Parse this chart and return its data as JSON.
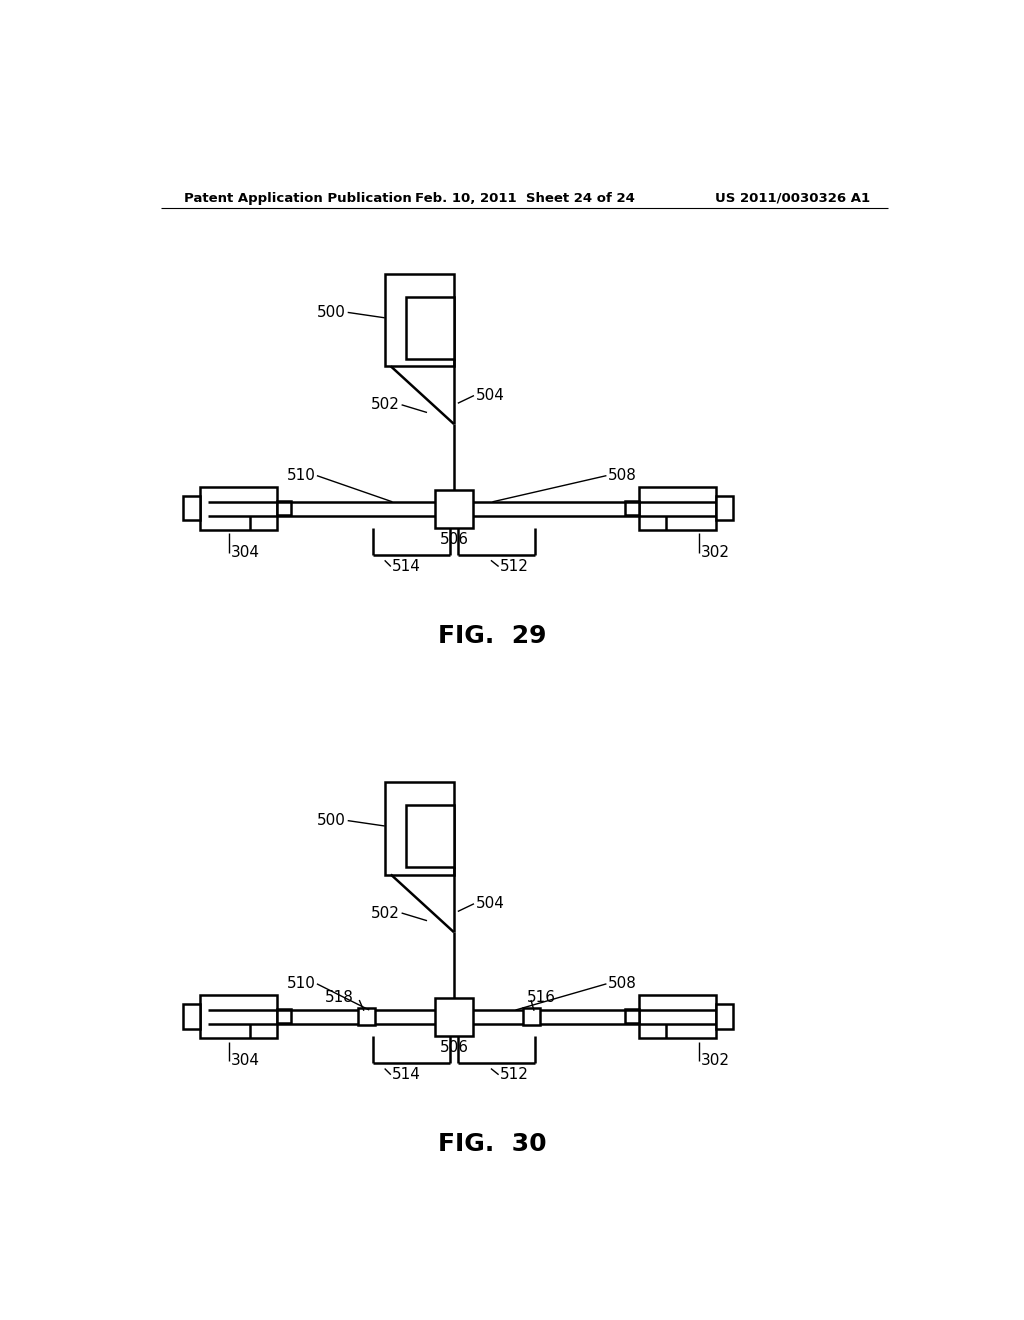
{
  "header_left": "Patent Application Publication",
  "header_mid": "Feb. 10, 2011  Sheet 24 of 24",
  "header_right": "US 2011/0030326 A1",
  "bg_color": "#ffffff",
  "line_color": "#000000",
  "fig29_title": "FIG.  29",
  "fig30_title": "FIG.  30"
}
